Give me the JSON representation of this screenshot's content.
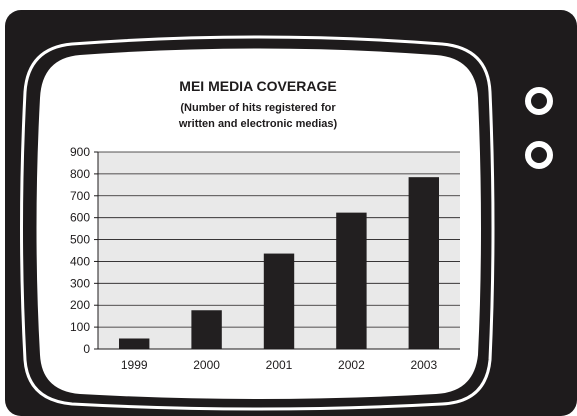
{
  "colors": {
    "tv_body": "#1e1b1c",
    "screen": "#ffffff",
    "plot_bg": "#e9e9e9",
    "bar": "#221f20",
    "knob_ring": "#ffffff"
  },
  "chart_data": {
    "type": "bar",
    "title": "MEI MEDIA COVERAGE",
    "subtitle": [
      "(Number of hits registered for",
      "written and electronic medias)"
    ],
    "xlabel": "",
    "ylabel": "",
    "categories": [
      "1999",
      "2000",
      "2001",
      "2002",
      "2003"
    ],
    "values": [
      48,
      177,
      436,
      623,
      785
    ],
    "ylim": [
      0,
      900
    ],
    "yticks": [
      0,
      100,
      200,
      300,
      400,
      500,
      600,
      700,
      800,
      900
    ],
    "grid": true,
    "legend": "none"
  },
  "tv": {
    "knobs": [
      "knob-top",
      "knob-bottom"
    ]
  }
}
